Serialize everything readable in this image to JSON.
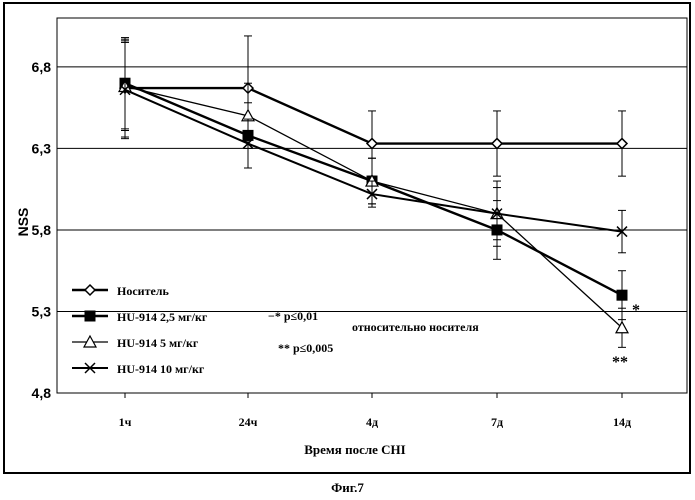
{
  "chart_data": {
    "type": "line",
    "title": "",
    "xlabel": "Время после CHI",
    "ylabel": "NSS",
    "categories": [
      "1ч",
      "24ч",
      "4д",
      "7д",
      "14д"
    ],
    "ylim": [
      4.8,
      7.1
    ],
    "yticks": [
      "6,8",
      "6,3",
      "5,8",
      "5,3",
      "4,8"
    ],
    "ytick_values": [
      6.8,
      6.3,
      5.8,
      5.3,
      4.8
    ],
    "grid": true,
    "legend_position": "bottom-left",
    "series": [
      {
        "name": "Носитель",
        "marker": "diamond",
        "values": [
          6.67,
          6.67,
          6.33,
          6.33,
          6.33
        ],
        "err": [
          0.3,
          0.32,
          0.2,
          0.2,
          0.2
        ]
      },
      {
        "name": "HU-914 2,5 мг/кг",
        "marker": "square",
        "values": [
          6.7,
          6.38,
          6.1,
          5.8,
          5.4
        ],
        "err": [
          0.28,
          0.2,
          0.14,
          0.18,
          0.15
        ]
      },
      {
        "name": "HU-914 5 мг/кг",
        "marker": "triangle",
        "values": [
          6.68,
          6.5,
          6.1,
          5.9,
          5.2
        ],
        "err": [
          0.27,
          0.2,
          0.14,
          0.16,
          0.12
        ]
      },
      {
        "name": "HU-914 10 мг/кг",
        "marker": "x",
        "values": [
          6.66,
          6.33,
          6.02,
          5.9,
          5.79
        ],
        "err": [
          0.3,
          0.15,
          0.08,
          0.2,
          0.13
        ]
      }
    ],
    "annotations": {
      "p1": "−* p≤0,01",
      "p2": "** p≤0,005",
      "relative": "относительно носителя",
      "star_single": "*",
      "star_double": "**"
    }
  },
  "figure": {
    "caption": "Фиг.7"
  }
}
